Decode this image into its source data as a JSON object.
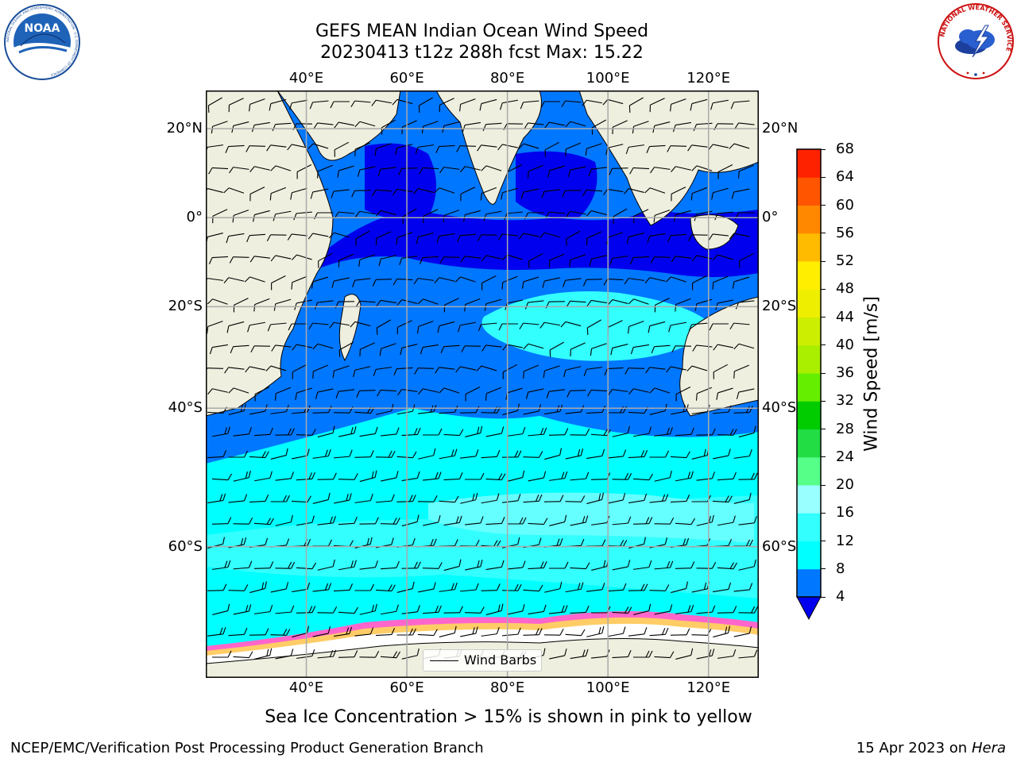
{
  "title": {
    "line1": "GEFS MEAN Indian Ocean Wind Speed",
    "line2": "20230413 t12z 288h fcst   Max: 15.22"
  },
  "map": {
    "region": "Indian Ocean",
    "projection": "equirectangular",
    "lon_range_deg": [
      20,
      130
    ],
    "lat_range_deg": [
      -72,
      28
    ],
    "lon_ticks": [
      {
        "value": 40,
        "label": "40°E"
      },
      {
        "value": 60,
        "label": "60°E"
      },
      {
        "value": 80,
        "label": "80°E"
      },
      {
        "value": 100,
        "label": "100°E"
      },
      {
        "value": 120,
        "label": "120°E"
      }
    ],
    "lat_ticks": [
      {
        "value": 20,
        "label": "20°N"
      },
      {
        "value": 0,
        "label": "0°"
      },
      {
        "value": -20,
        "label": "20°S"
      },
      {
        "value": -40,
        "label": "40°S"
      },
      {
        "value": -60,
        "label": "60°S"
      }
    ],
    "grid": true,
    "land_color": "#efefdf",
    "sea_ice_color": "#ffffff"
  },
  "legend": {
    "label": "Wind Barbs",
    "placement": "bottom-center"
  },
  "colorbar": {
    "label": "Wind Speed [m/s]",
    "levels": [
      4,
      8,
      12,
      16,
      20,
      24,
      28,
      32,
      36,
      40,
      44,
      48,
      52,
      56,
      60,
      64,
      68
    ],
    "colors": [
      "#0077ff",
      "#00ffff",
      "#33ffff",
      "#99ffff",
      "#55ff88",
      "#22dd44",
      "#00cc00",
      "#66ee00",
      "#aaee00",
      "#ccee00",
      "#eeee00",
      "#ffee00",
      "#ffbb00",
      "#ff8800",
      "#ff5500",
      "#ff2200"
    ],
    "under_color": "#0000ee",
    "extend": "min"
  },
  "caption": "Sea Ice Concentration > 15% is shown in pink to yellow",
  "footer": {
    "left": "NCEP/EMC/Verification Post Processing Product Generation Branch",
    "right_prefix": "15 Apr 2023 on ",
    "right_host": "Hera"
  },
  "logos": {
    "left": {
      "name": "NOAA",
      "text": "NOAA",
      "ring_text": "NATIONAL OCEANIC AND ATMOSPHERIC ADMINISTRATION · U.S. DEPARTMENT OF COMMERCE"
    },
    "right": {
      "name": "National Weather Service",
      "ring_text": "NATIONAL WEATHER SERVICE"
    }
  }
}
